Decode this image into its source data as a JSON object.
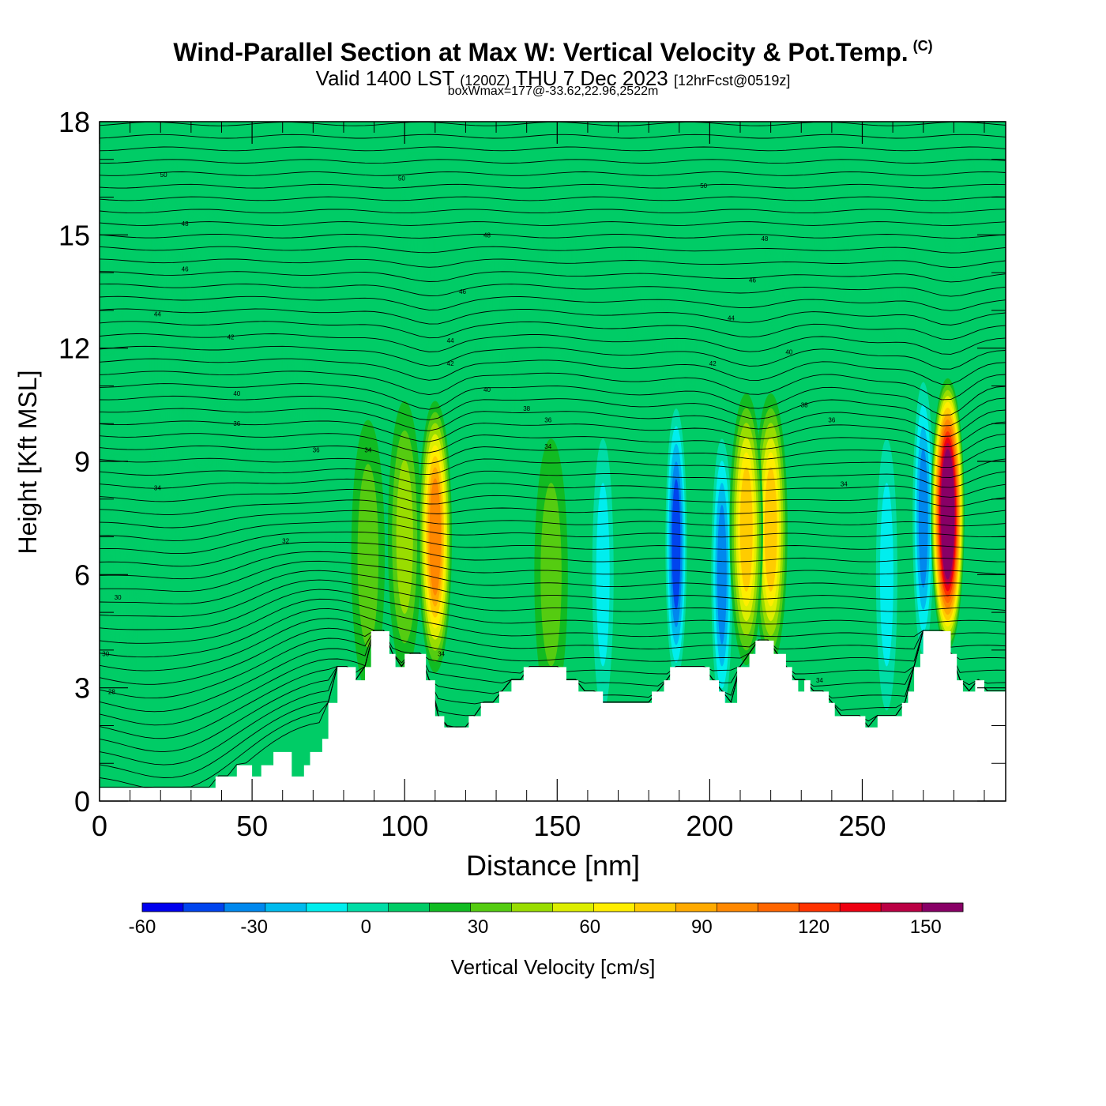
{
  "header": {
    "title": "Wind-Parallel Section at Max W: Vertical Velocity & Pot.Temp.",
    "copyright": "(C)",
    "valid_prefix": "Valid 1400 LST",
    "valid_utc": "(1200Z)",
    "valid_date": "THU 7 Dec 2023",
    "forecast": "[12hrFcst@0519z]",
    "boxwmax": "boxWmax=177@-33.62,22.96,2522m"
  },
  "chart_data": {
    "type": "heatmap",
    "xlabel": "Distance [nm]",
    "ylabel": "Height [Kft MSL]",
    "xlim": [
      0,
      297
    ],
    "ylim": [
      0,
      18
    ],
    "x_ticks": [
      0,
      50,
      100,
      150,
      200,
      250
    ],
    "y_ticks": [
      0,
      3,
      6,
      9,
      12,
      15,
      18
    ],
    "colorbar": {
      "label": "Vertical Velocity [cm/s]",
      "min": -60,
      "max": 160,
      "step": 10,
      "tick_labels": [
        "-60",
        "-30",
        "0",
        "30",
        "60",
        "90",
        "120",
        "150"
      ],
      "colors": [
        "#0000ee",
        "#0044ee",
        "#0088ee",
        "#00bbee",
        "#00eeee",
        "#00dda6",
        "#00cc66",
        "#11bb22",
        "#55cc11",
        "#99dd00",
        "#ddee00",
        "#ffee00",
        "#ffcc00",
        "#ffaa00",
        "#ff8800",
        "#ff6600",
        "#ff3300",
        "#ee0011",
        "#bb0044",
        "#880066"
      ]
    },
    "terrain": [
      [
        0,
        0.35
      ],
      [
        38,
        0.35
      ],
      [
        38,
        0.65
      ],
      [
        45,
        0.65
      ],
      [
        45,
        0.95
      ],
      [
        50,
        0.95
      ],
      [
        50,
        0.65
      ],
      [
        53,
        0.65
      ],
      [
        53,
        0.95
      ],
      [
        57,
        0.95
      ],
      [
        57,
        1.3
      ],
      [
        63,
        1.3
      ],
      [
        63,
        0.65
      ],
      [
        67,
        0.65
      ],
      [
        67,
        0.95
      ],
      [
        69,
        0.95
      ],
      [
        69,
        1.3
      ],
      [
        73,
        1.3
      ],
      [
        73,
        1.65
      ],
      [
        75,
        1.65
      ],
      [
        75,
        2.6
      ],
      [
        78,
        2.6
      ],
      [
        78,
        3.55
      ],
      [
        84,
        3.55
      ],
      [
        84,
        3.2
      ],
      [
        87,
        3.2
      ],
      [
        87,
        3.55
      ],
      [
        89,
        3.55
      ],
      [
        89,
        4.5
      ],
      [
        95,
        4.5
      ],
      [
        95,
        3.9
      ],
      [
        97,
        3.9
      ],
      [
        97,
        3.55
      ],
      [
        100,
        3.55
      ],
      [
        100,
        3.9
      ],
      [
        107,
        3.9
      ],
      [
        107,
        3.2
      ],
      [
        110,
        3.2
      ],
      [
        110,
        2.25
      ],
      [
        113,
        2.25
      ],
      [
        113,
        1.95
      ],
      [
        121,
        1.95
      ],
      [
        121,
        2.25
      ],
      [
        125,
        2.25
      ],
      [
        125,
        2.6
      ],
      [
        131,
        2.6
      ],
      [
        131,
        2.9
      ],
      [
        135,
        2.9
      ],
      [
        135,
        3.2
      ],
      [
        139,
        3.2
      ],
      [
        139,
        3.55
      ],
      [
        153,
        3.55
      ],
      [
        153,
        3.2
      ],
      [
        157,
        3.2
      ],
      [
        157,
        2.9
      ],
      [
        165,
        2.9
      ],
      [
        165,
        2.6
      ],
      [
        181,
        2.6
      ],
      [
        181,
        2.9
      ],
      [
        185,
        2.9
      ],
      [
        185,
        3.2
      ],
      [
        187,
        3.2
      ],
      [
        187,
        3.55
      ],
      [
        200,
        3.55
      ],
      [
        200,
        3.2
      ],
      [
        203,
        3.2
      ],
      [
        203,
        2.9
      ],
      [
        205,
        2.9
      ],
      [
        205,
        2.6
      ],
      [
        209,
        2.6
      ],
      [
        209,
        3.55
      ],
      [
        213,
        3.55
      ],
      [
        213,
        3.9
      ],
      [
        215,
        3.9
      ],
      [
        215,
        4.25
      ],
      [
        221,
        4.25
      ],
      [
        221,
        3.9
      ],
      [
        225,
        3.9
      ],
      [
        225,
        3.55
      ],
      [
        227,
        3.55
      ],
      [
        227,
        3.2
      ],
      [
        229,
        3.2
      ],
      [
        229,
        2.9
      ],
      [
        231,
        2.9
      ],
      [
        231,
        3.2
      ],
      [
        233,
        3.2
      ],
      [
        233,
        2.9
      ],
      [
        239,
        2.9
      ],
      [
        239,
        2.6
      ],
      [
        241,
        2.6
      ],
      [
        241,
        2.25
      ],
      [
        251,
        2.25
      ],
      [
        251,
        1.95
      ],
      [
        255,
        1.95
      ],
      [
        255,
        2.25
      ],
      [
        263,
        2.25
      ],
      [
        263,
        2.6
      ],
      [
        265,
        2.6
      ],
      [
        265,
        2.9
      ],
      [
        267,
        2.9
      ],
      [
        267,
        3.55
      ],
      [
        269,
        3.55
      ],
      [
        269,
        3.9
      ],
      [
        270,
        3.9
      ],
      [
        270,
        4.5
      ],
      [
        279,
        4.5
      ],
      [
        279,
        3.9
      ],
      [
        281,
        3.9
      ],
      [
        281,
        3.2
      ],
      [
        283,
        3.2
      ],
      [
        283,
        2.9
      ],
      [
        287,
        2.9
      ],
      [
        287,
        3.2
      ],
      [
        290,
        3.2
      ],
      [
        290,
        2.9
      ],
      [
        297,
        2.9
      ]
    ],
    "updraft_cores": [
      {
        "x": 110,
        "y": 7.0,
        "peak": 80
      },
      {
        "x": 212,
        "y": 7.2,
        "peak": 60
      },
      {
        "x": 220,
        "y": 7.2,
        "peak": 55
      },
      {
        "x": 278,
        "y": 7.6,
        "peak": 150
      },
      {
        "x": 100,
        "y": 7.0,
        "peak": 25
      },
      {
        "x": 88,
        "y": 6.5,
        "peak": 20
      },
      {
        "x": 148,
        "y": 6.0,
        "peak": 18
      }
    ],
    "downdraft_cores": [
      {
        "x": 189,
        "y": 6.8,
        "peak": -45
      },
      {
        "x": 204,
        "y": 6.0,
        "peak": -40
      },
      {
        "x": 165,
        "y": 6.0,
        "peak": -20
      },
      {
        "x": 258,
        "y": 6.0,
        "peak": -15
      },
      {
        "x": 270,
        "y": 7.5,
        "peak": -35
      }
    ],
    "isentrope_labels": [
      {
        "text": "50",
        "x": 21,
        "y": 16.6
      },
      {
        "text": "50",
        "x": 99,
        "y": 16.5
      },
      {
        "text": "50",
        "x": 198,
        "y": 16.3
      },
      {
        "text": "48",
        "x": 28,
        "y": 15.3
      },
      {
        "text": "48",
        "x": 127,
        "y": 15.0
      },
      {
        "text": "48",
        "x": 218,
        "y": 14.9
      },
      {
        "text": "46",
        "x": 28,
        "y": 14.1
      },
      {
        "text": "46",
        "x": 119,
        "y": 13.5
      },
      {
        "text": "46",
        "x": 214,
        "y": 13.8
      },
      {
        "text": "44",
        "x": 19,
        "y": 12.9
      },
      {
        "text": "44",
        "x": 115,
        "y": 12.2
      },
      {
        "text": "44",
        "x": 207,
        "y": 12.8
      },
      {
        "text": "42",
        "x": 43,
        "y": 12.3
      },
      {
        "text": "42",
        "x": 115,
        "y": 11.6
      },
      {
        "text": "42",
        "x": 201,
        "y": 11.6
      },
      {
        "text": "40",
        "x": 226,
        "y": 11.9
      },
      {
        "text": "40",
        "x": 45,
        "y": 10.8
      },
      {
        "text": "40",
        "x": 127,
        "y": 10.9
      },
      {
        "text": "38",
        "x": 140,
        "y": 10.4
      },
      {
        "text": "38",
        "x": 231,
        "y": 10.5
      },
      {
        "text": "36",
        "x": 45,
        "y": 10.0
      },
      {
        "text": "36",
        "x": 147,
        "y": 10.1
      },
      {
        "text": "36",
        "x": 240,
        "y": 10.1
      },
      {
        "text": "36",
        "x": 71,
        "y": 9.3
      },
      {
        "text": "34",
        "x": 88,
        "y": 9.3
      },
      {
        "text": "34",
        "x": 147,
        "y": 9.4
      },
      {
        "text": "34",
        "x": 19,
        "y": 8.3
      },
      {
        "text": "34",
        "x": 244,
        "y": 8.4
      },
      {
        "text": "34",
        "x": 112,
        "y": 3.9
      },
      {
        "text": "34",
        "x": 236,
        "y": 3.2
      },
      {
        "text": "32",
        "x": 61,
        "y": 6.9
      },
      {
        "text": "30",
        "x": 6,
        "y": 5.4
      },
      {
        "text": "30",
        "x": 2,
        "y": 3.9
      },
      {
        "text": "28",
        "x": 4,
        "y": 2.9
      }
    ]
  }
}
